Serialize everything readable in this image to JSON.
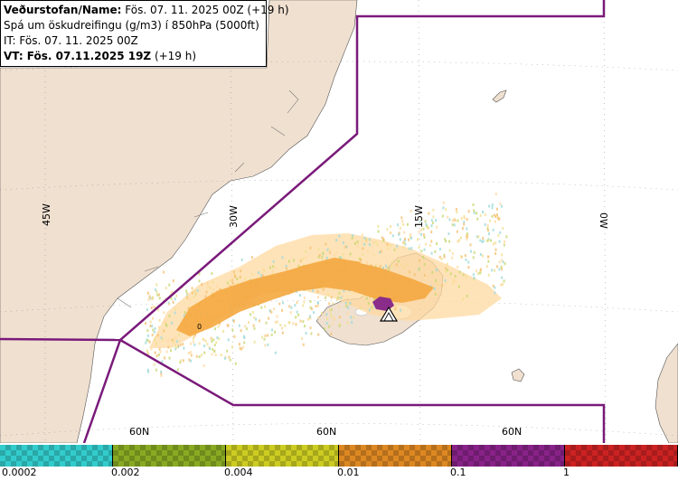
{
  "info": {
    "name_label": "Veðurstofan/Name:",
    "name_value": " Fös. 07. 11. 2025 00Z (+19 h)",
    "description": "Spá um öskudreifingu (g/m3) í 850hPa (5000ft)",
    "issue_time": "IT: Fös. 07. 11. 2025 00Z",
    "valid_time_label": "VT: Fös. 07.11.2025 19Z",
    "valid_time_offset": " (+19 h)"
  },
  "grid_labels": {
    "lon_45w": "45W",
    "lon_30w": "30W",
    "lon_15w": "15W",
    "lon_0w": "0W",
    "lat_60n_a": "60N",
    "lat_60n_b": "60N",
    "lat_60n_c": "60N"
  },
  "map_marker": "0",
  "legend": {
    "colors": [
      "#33cccc",
      "#88aa22",
      "#cccc22",
      "#dd8822",
      "#882288",
      "#cc2222"
    ],
    "ticks": [
      "0.0002",
      "0.002",
      "0.004",
      "0.01",
      "0.1",
      "1"
    ]
  },
  "colors": {
    "land": "#f0e0d0",
    "sea": "#ffffff",
    "boundary": "#7a1a7a",
    "ash_light": "#ffd9a0",
    "ash_orange": "#f5a840",
    "ash_purple": "#8a2d8a"
  }
}
